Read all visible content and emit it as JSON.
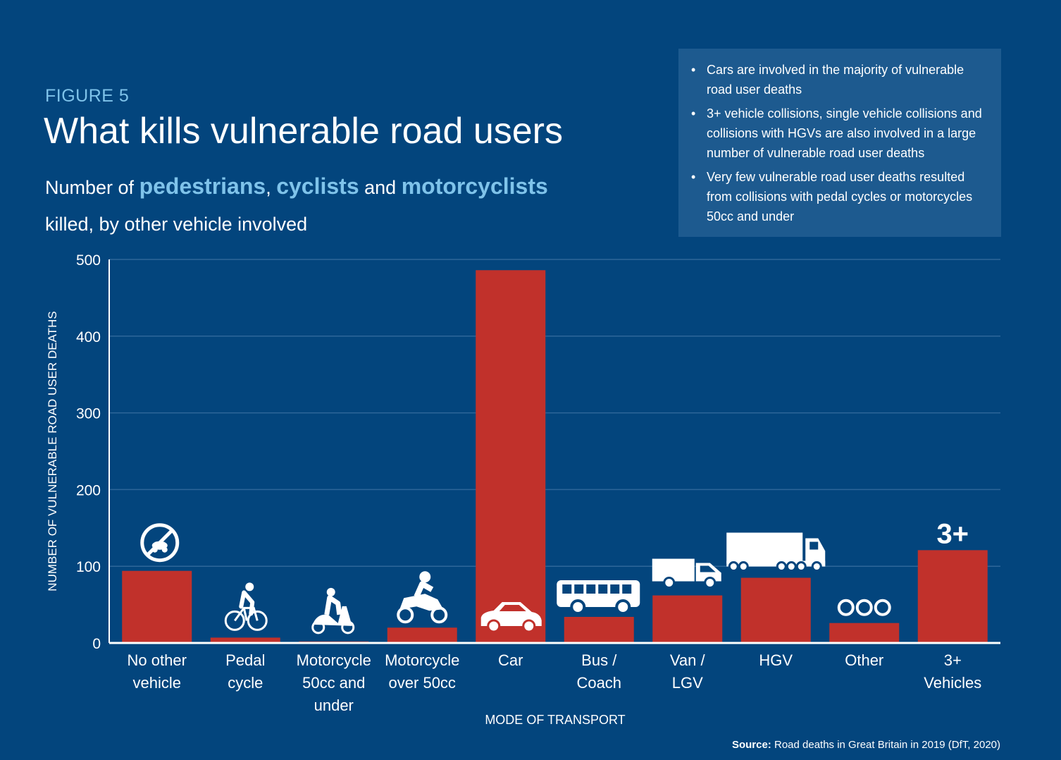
{
  "header": {
    "figure_label": "FIGURE 5",
    "title": "What kills vulnerable road users",
    "subtitle_prefix": "Number of ",
    "subtitle_hl1": "pedestrians",
    "subtitle_sep1": ", ",
    "subtitle_hl2": "cyclists",
    "subtitle_sep2": " and ",
    "subtitle_hl3": "motorcyclists",
    "subtitle_suffix": "killed, by other vehicle involved"
  },
  "callout": {
    "bullets": [
      "Cars are involved in the majority of vulnerable road user deaths",
      "3+ vehicle collisions, single vehicle collisions and collisions with HGVs are also involved in a large number of vulnerable road user deaths",
      "Very few vulnerable road user deaths resulted from collisions with pedal cycles or motorcycles 50cc and under"
    ]
  },
  "source": {
    "label": "Source:",
    "text": " Road deaths in Great Britain in 2019 (DfT, 2020)"
  },
  "colors": {
    "background": "#03457d",
    "bar": "#c1312b",
    "accent": "#7fc3ea",
    "gridline": "#2e6699",
    "callout_bg": "#1d5a8f"
  },
  "chart_data": {
    "type": "bar",
    "title": "What kills vulnerable road users",
    "xlabel": "MODE OF TRANSPORT",
    "ylabel": "NUMBER OF VULNERABLE ROAD USER DEATHS",
    "ylim": [
      0,
      500
    ],
    "yticks": [
      0,
      100,
      200,
      300,
      400,
      500
    ],
    "grid": true,
    "categories": [
      [
        "No other",
        "vehicle"
      ],
      [
        "Pedal",
        "cycle"
      ],
      [
        "Motorcycle",
        "50cc and",
        "under"
      ],
      [
        "Motorcycle",
        "over 50cc"
      ],
      [
        "Car"
      ],
      [
        "Bus /",
        "Coach"
      ],
      [
        "Van /",
        "LGV"
      ],
      [
        "HGV"
      ],
      [
        "Other"
      ],
      [
        "3+",
        "Vehicles"
      ]
    ],
    "values": [
      94,
      7,
      2,
      20,
      486,
      34,
      62,
      85,
      26,
      121
    ],
    "icons": [
      "no-vehicle-icon",
      "bicycle-icon",
      "scooter-icon",
      "motorcycle-icon",
      "car-icon",
      "bus-icon",
      "van-icon",
      "hgv-icon",
      "other-icon",
      "three-plus-icon"
    ],
    "icon_text_3plus": "3+"
  }
}
